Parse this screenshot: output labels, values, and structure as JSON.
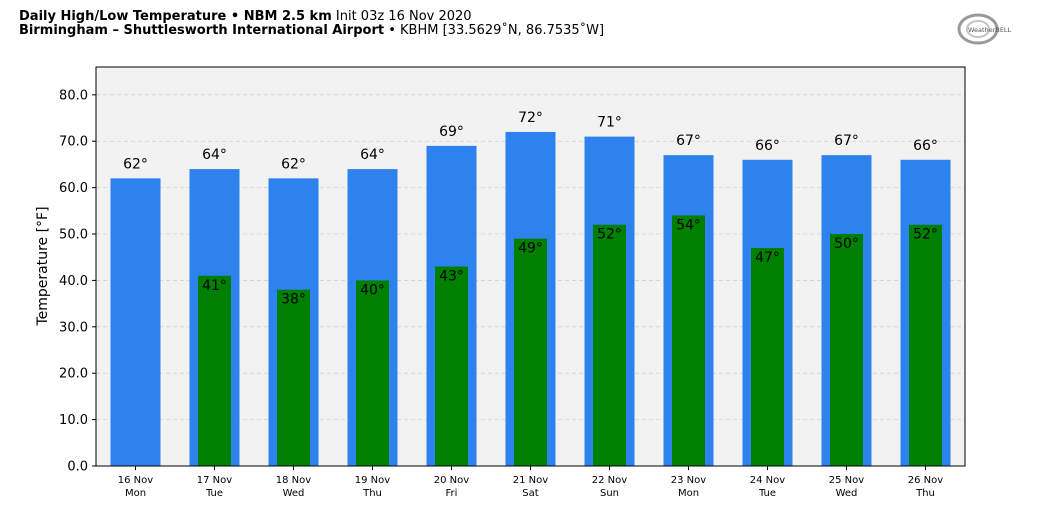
{
  "header": {
    "title_bold": "Daily High/Low Temperature • NBM 2.5 km",
    "init": "Init 03z 16 Nov 2020",
    "location_bold": "Birmingham – Shuttlesworth International Airport",
    "station": "• KBHM [33.5629˚N, 86.7535˚W]"
  },
  "logo": {
    "text": "WeatherBELL",
    "icon": "weatherbell-logo"
  },
  "chart_data": {
    "type": "bar",
    "ylabel": "Temperature [°F]",
    "ylim": [
      0,
      86
    ],
    "yticks": [
      0,
      10,
      20,
      30,
      40,
      50,
      60,
      70,
      80
    ],
    "ytick_labels": [
      "0.0",
      "10.0",
      "20.0",
      "30.0",
      "40.0",
      "50.0",
      "60.0",
      "70.0",
      "80.0"
    ],
    "grid": true,
    "categories": [
      {
        "date": "16 Nov",
        "day": "Mon"
      },
      {
        "date": "17 Nov",
        "day": "Tue"
      },
      {
        "date": "18 Nov",
        "day": "Wed"
      },
      {
        "date": "19 Nov",
        "day": "Thu"
      },
      {
        "date": "20 Nov",
        "day": "Fri"
      },
      {
        "date": "21 Nov",
        "day": "Sat"
      },
      {
        "date": "22 Nov",
        "day": "Sun"
      },
      {
        "date": "23 Nov",
        "day": "Mon"
      },
      {
        "date": "24 Nov",
        "day": "Tue"
      },
      {
        "date": "25 Nov",
        "day": "Wed"
      },
      {
        "date": "26 Nov",
        "day": "Thu"
      }
    ],
    "series": [
      {
        "values": [
          62,
          64,
          62,
          64,
          69,
          72,
          71,
          67,
          66,
          67,
          66
        ],
        "labels": [
          "62°",
          "64°",
          "62°",
          "64°",
          "69°",
          "72°",
          "71°",
          "67°",
          "66°",
          "67°",
          "66°"
        ],
        "color": "#2e82ee"
      },
      {
        "values": [
          null,
          41,
          38,
          40,
          43,
          49,
          52,
          54,
          47,
          50,
          52
        ],
        "labels": [
          "",
          "41°",
          "38°",
          "40°",
          "43°",
          "49°",
          "52°",
          "54°",
          "47°",
          "50°",
          "52°"
        ],
        "color": "#008000"
      }
    ],
    "plot_background": "#f2f2f2"
  }
}
